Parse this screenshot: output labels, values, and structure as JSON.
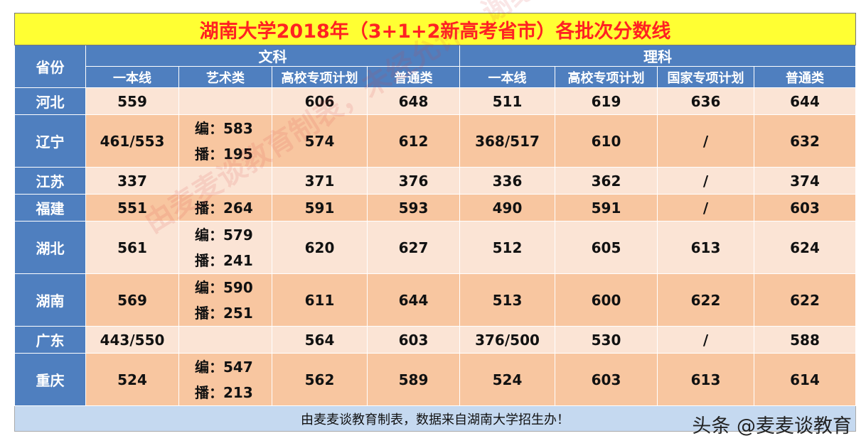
{
  "title": "湖南大学2018年（3+1+2新高考省市）各批次分数线",
  "header": {
    "province": "省份",
    "groups": [
      "文科",
      "理科"
    ],
    "wenke_cols": [
      "一本线",
      "艺术类",
      "高校专项计划",
      "普通类"
    ],
    "like_cols": [
      "一本线",
      "高校专项计划",
      "国家专项计划",
      "普通类"
    ]
  },
  "rows": [
    {
      "province": "河北",
      "w_yiben": "559",
      "w_art": [],
      "w_gaoxiao": "606",
      "w_putong": "648",
      "l_yiben": "511",
      "l_gaoxiao": "619",
      "l_guojia": "636",
      "l_putong": "644"
    },
    {
      "province": "辽宁",
      "w_yiben": "461/553",
      "w_art": [
        "编：583",
        "播：195"
      ],
      "w_gaoxiao": "574",
      "w_putong": "612",
      "l_yiben": "368/517",
      "l_gaoxiao": "610",
      "l_guojia": "/",
      "l_putong": "632"
    },
    {
      "province": "江苏",
      "w_yiben": "337",
      "w_art": [],
      "w_gaoxiao": "371",
      "w_putong": "376",
      "l_yiben": "336",
      "l_gaoxiao": "362",
      "l_guojia": "/",
      "l_putong": "374"
    },
    {
      "province": "福建",
      "w_yiben": "551",
      "w_art": [
        "播：264"
      ],
      "w_gaoxiao": "591",
      "w_putong": "593",
      "l_yiben": "490",
      "l_gaoxiao": "591",
      "l_guojia": "/",
      "l_putong": "603"
    },
    {
      "province": "湖北",
      "w_yiben": "561",
      "w_art": [
        "编：579",
        "播：241"
      ],
      "w_gaoxiao": "620",
      "w_putong": "627",
      "l_yiben": "512",
      "l_gaoxiao": "605",
      "l_guojia": "613",
      "l_putong": "624"
    },
    {
      "province": "湖南",
      "w_yiben": "569",
      "w_art": [
        "编：590",
        "播：251"
      ],
      "w_gaoxiao": "611",
      "w_putong": "644",
      "l_yiben": "513",
      "l_gaoxiao": "600",
      "l_guojia": "622",
      "l_putong": "622"
    },
    {
      "province": "广东",
      "w_yiben": "443/550",
      "w_art": [],
      "w_gaoxiao": "564",
      "w_putong": "603",
      "l_yiben": "376/500",
      "l_gaoxiao": "530",
      "l_guojia": "/",
      "l_putong": "588"
    },
    {
      "province": "重庆",
      "w_yiben": "524",
      "w_art": [
        "编：547",
        "播：213"
      ],
      "w_gaoxiao": "562",
      "w_putong": "589",
      "l_yiben": "524",
      "l_gaoxiao": "603",
      "l_guojia": "613",
      "l_putong": "614"
    }
  ],
  "footer": "由麦麦谈教育制表，数据来自湖南大学招生办！",
  "watermark": "由麦麦谈教育制表，未经允许，谢绝转载！",
  "brand": "头条 @麦麦谈教育",
  "colors": {
    "title_bg": "#ffff33",
    "title_text": "#ff2222",
    "header_bg": "#4f7fbf",
    "row_light": "#fbe4d5",
    "row_dark": "#f8c6a0",
    "footer_bg": "#c5d9f0"
  }
}
